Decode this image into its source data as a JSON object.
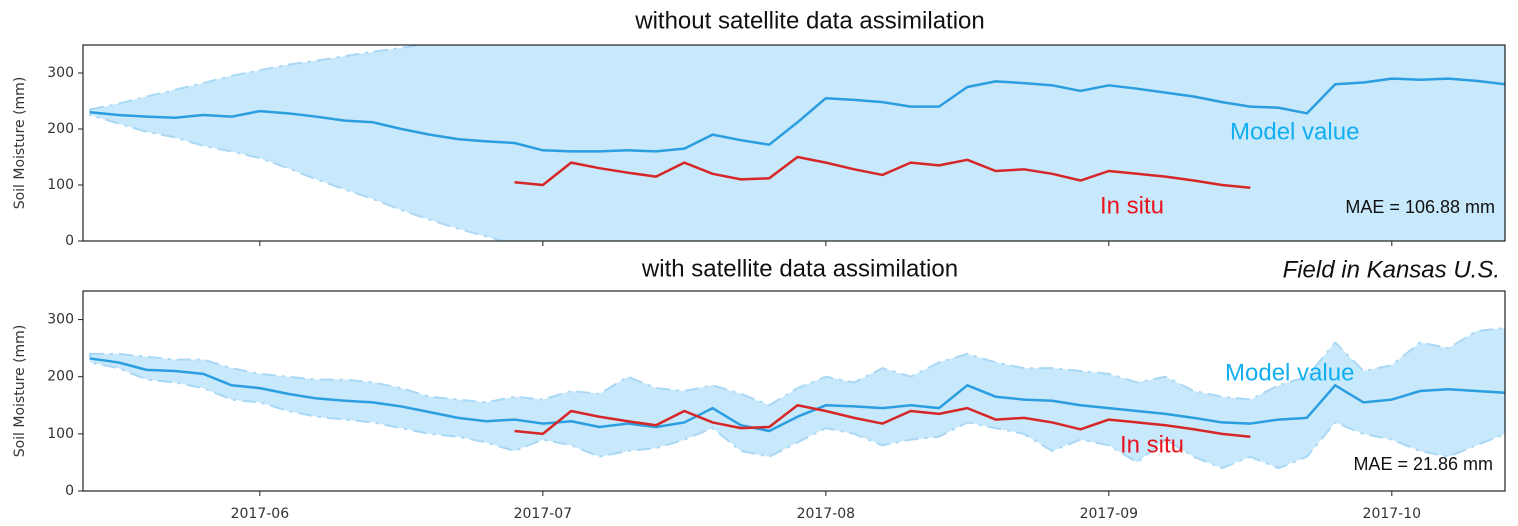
{
  "chart_data": [
    {
      "type": "line",
      "title": "without satellite data assimilation",
      "ylabel": "Soil Moisture (mm)",
      "mae": "MAE = 106.88 mm",
      "xlim": [
        5.375,
        10.4
      ],
      "ylim": [
        0,
        350
      ],
      "yticks": [
        0,
        100,
        200,
        300
      ],
      "xticks": [
        6,
        7,
        8,
        9,
        10
      ],
      "x": [
        5.4,
        5.5,
        5.6,
        5.7,
        5.8,
        5.9,
        6.0,
        6.1,
        6.2,
        6.3,
        6.4,
        6.5,
        6.6,
        6.7,
        6.8,
        6.9,
        7.0,
        7.1,
        7.2,
        7.3,
        7.4,
        7.5,
        7.6,
        7.7,
        7.8,
        7.9,
        8.0,
        8.1,
        8.2,
        8.3,
        8.4,
        8.5,
        8.6,
        8.7,
        8.8,
        8.9,
        9.0,
        9.1,
        9.2,
        9.3,
        9.4,
        9.5,
        9.6,
        9.7,
        9.8,
        9.9,
        10.0,
        10.1,
        10.2,
        10.3,
        10.4
      ],
      "band": {
        "color": "#c8e8fb",
        "upper": [
          235,
          245,
          258,
          270,
          282,
          295,
          305,
          315,
          322,
          330,
          338,
          345,
          352,
          358,
          365,
          370,
          375,
          380,
          385,
          390,
          400,
          400,
          400,
          400,
          400,
          400,
          400,
          400,
          400,
          400,
          400,
          400,
          400,
          400,
          400,
          400,
          400,
          400,
          400,
          400,
          400,
          400,
          400,
          400,
          400,
          400,
          400,
          400,
          400,
          400,
          400
        ],
        "lower": [
          225,
          210,
          195,
          185,
          170,
          160,
          148,
          130,
          110,
          92,
          75,
          55,
          38,
          22,
          8,
          -5,
          -20,
          -35,
          -50,
          -65,
          -80,
          -80,
          -80,
          -80,
          -80,
          -80,
          -80,
          -80,
          -80,
          -80,
          -80,
          -80,
          -80,
          -80,
          -80,
          -80,
          -80,
          -80,
          -80,
          -80,
          -80,
          -80,
          -80,
          -80,
          -80,
          -80,
          -80,
          -80,
          -80,
          -80,
          -80
        ]
      },
      "series": [
        {
          "name": "Model value",
          "color": "#2b9ee0",
          "label_color": "#12aef0",
          "values": [
            230,
            225,
            222,
            220,
            225,
            222,
            232,
            228,
            222,
            215,
            212,
            200,
            190,
            182,
            178,
            175,
            162,
            160,
            160,
            162,
            160,
            165,
            190,
            180,
            172,
            212,
            255,
            252,
            248,
            240,
            240,
            275,
            285,
            282,
            278,
            268,
            278,
            272,
            265,
            258,
            248,
            240,
            238,
            228,
            280,
            283,
            290,
            288,
            290,
            286,
            280
          ]
        },
        {
          "name": "In situ",
          "color": "#d62728",
          "label_color": "#e8141e",
          "values": [
            null,
            null,
            null,
            null,
            null,
            null,
            null,
            null,
            null,
            null,
            null,
            null,
            null,
            null,
            null,
            105,
            100,
            140,
            130,
            122,
            115,
            140,
            120,
            110,
            112,
            150,
            140,
            128,
            118,
            140,
            135,
            145,
            125,
            128,
            120,
            108,
            125,
            120,
            115,
            108,
            100,
            95,
            null,
            null,
            null,
            null,
            null,
            null,
            null,
            null,
            null
          ]
        }
      ]
    },
    {
      "type": "line",
      "title": "with satellite data assimilation",
      "subtitle": "Field in Kansas U.S.",
      "ylabel": "Soil Moisture (mm)",
      "mae": "MAE = 21.86 mm",
      "xlim": [
        5.375,
        10.4
      ],
      "ylim": [
        0,
        350
      ],
      "yticks": [
        0,
        100,
        200,
        300
      ],
      "xticks": [
        {
          "value": 6,
          "label": "2017-06"
        },
        {
          "value": 7,
          "label": "2017-07"
        },
        {
          "value": 8,
          "label": "2017-08"
        },
        {
          "value": 9,
          "label": "2017-09"
        },
        {
          "value": 10,
          "label": "2017-10"
        }
      ],
      "x": [
        5.4,
        5.5,
        5.6,
        5.7,
        5.8,
        5.9,
        6.0,
        6.1,
        6.2,
        6.3,
        6.4,
        6.5,
        6.6,
        6.7,
        6.8,
        6.9,
        7.0,
        7.1,
        7.2,
        7.3,
        7.4,
        7.5,
        7.6,
        7.7,
        7.8,
        7.9,
        8.0,
        8.1,
        8.2,
        8.3,
        8.4,
        8.5,
        8.6,
        8.7,
        8.8,
        8.9,
        9.0,
        9.1,
        9.2,
        9.3,
        9.4,
        9.5,
        9.6,
        9.7,
        9.8,
        9.9,
        10.0,
        10.1,
        10.2,
        10.3,
        10.4
      ],
      "band": {
        "color": "#c8e8fb",
        "upper": [
          240,
          240,
          235,
          230,
          230,
          215,
          205,
          200,
          195,
          195,
          190,
          180,
          165,
          160,
          155,
          165,
          160,
          175,
          170,
          200,
          180,
          175,
          185,
          170,
          150,
          180,
          200,
          190,
          215,
          200,
          225,
          240,
          225,
          215,
          215,
          210,
          205,
          190,
          200,
          175,
          165,
          160,
          185,
          200,
          260,
          210,
          220,
          260,
          250,
          280,
          285
        ],
        "lower": [
          225,
          215,
          195,
          190,
          180,
          160,
          155,
          140,
          130,
          125,
          120,
          110,
          100,
          95,
          85,
          70,
          90,
          80,
          60,
          70,
          75,
          90,
          110,
          70,
          60,
          85,
          110,
          100,
          80,
          90,
          95,
          120,
          110,
          100,
          70,
          90,
          80,
          50,
          90,
          60,
          40,
          60,
          40,
          60,
          120,
          100,
          90,
          70,
          60,
          80,
          100
        ]
      },
      "series": [
        {
          "name": "Model value",
          "color": "#2b9ee0",
          "label_color": "#12aef0",
          "values": [
            232,
            225,
            212,
            210,
            205,
            185,
            180,
            170,
            162,
            158,
            155,
            148,
            138,
            128,
            122,
            125,
            118,
            122,
            112,
            118,
            112,
            120,
            145,
            115,
            105,
            130,
            150,
            148,
            145,
            150,
            145,
            185,
            165,
            160,
            158,
            150,
            145,
            140,
            135,
            128,
            120,
            118,
            125,
            128,
            185,
            155,
            160,
            175,
            178,
            175,
            172
          ]
        },
        {
          "name": "In situ",
          "color": "#d62728",
          "label_color": "#e8141e",
          "values": [
            null,
            null,
            null,
            null,
            null,
            null,
            null,
            null,
            null,
            null,
            null,
            null,
            null,
            null,
            null,
            105,
            100,
            140,
            130,
            122,
            115,
            140,
            120,
            110,
            112,
            150,
            140,
            128,
            118,
            140,
            135,
            145,
            125,
            128,
            120,
            108,
            125,
            120,
            115,
            108,
            100,
            95,
            null,
            null,
            null,
            null,
            null,
            null,
            null,
            null,
            null
          ]
        }
      ]
    }
  ]
}
